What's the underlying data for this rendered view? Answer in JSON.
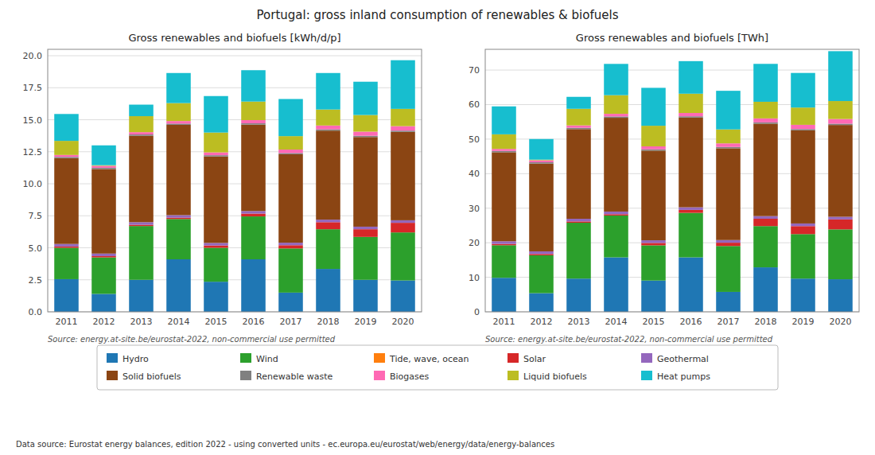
{
  "title": "Portugal: gross inland consumption of renewables & biofuels",
  "annotations": [
    "Data source: Eurostat energy balances, edition 2022 - using converted units - ec.europa.eu/eurostat/web/energy/data/energy-balances"
  ],
  "chart_data": [
    {
      "type": "bar",
      "stacked": true,
      "grid": true,
      "legend": "bottom",
      "title": "Gross renewables and biofuels [kWh/d/p]",
      "annotations": [
        "Source: energy.at-site.be/eurostat-2022, non-commercial use permitted"
      ],
      "categories": [
        "2011",
        "2012",
        "2013",
        "2014",
        "2015",
        "2016",
        "2017",
        "2018",
        "2019",
        "2020"
      ],
      "ylim": [
        0,
        20.5
      ],
      "yticks": [
        {
          "value": 0.0,
          "label": "0.0"
        },
        2.5,
        {
          "value": 5.0,
          "label": "5.0"
        },
        7.5,
        {
          "value": 10.0,
          "label": "10.0"
        },
        12.5,
        {
          "value": 15.0,
          "label": "15.0"
        },
        17.5,
        {
          "value": 20.0,
          "label": "20.0"
        }
      ],
      "series": [
        {
          "name": "Hydro",
          "color": "#1f77b4",
          "values": [
            2.55,
            1.4,
            2.5,
            4.1,
            2.35,
            4.1,
            1.5,
            3.35,
            2.5,
            2.45
          ]
        },
        {
          "name": "Wind",
          "color": "#2ca02c",
          "values": [
            2.45,
            2.85,
            4.2,
            3.15,
            2.65,
            3.35,
            3.45,
            3.1,
            3.35,
            3.75
          ]
        },
        {
          "name": "Tide, wave, ocean",
          "color": "#ff7f0e",
          "values": [
            0.0,
            0.0,
            0.0,
            0.0,
            0.0,
            0.0,
            0.0,
            0.0,
            0.0,
            0.0
          ]
        },
        {
          "name": "Solar",
          "color": "#d62728",
          "values": [
            0.1,
            0.1,
            0.1,
            0.1,
            0.18,
            0.22,
            0.25,
            0.55,
            0.6,
            0.75
          ]
        },
        {
          "name": "Geothermal",
          "color": "#9467bd",
          "values": [
            0.2,
            0.2,
            0.2,
            0.2,
            0.2,
            0.2,
            0.2,
            0.2,
            0.2,
            0.2
          ]
        },
        {
          "name": "Solid biofuels",
          "color": "#8B4513",
          "values": [
            6.7,
            6.6,
            6.75,
            7.05,
            6.75,
            6.75,
            6.9,
            6.95,
            7.0,
            6.9
          ]
        },
        {
          "name": "Renewable waste",
          "color": "#808080",
          "values": [
            0.1,
            0.1,
            0.1,
            0.1,
            0.1,
            0.1,
            0.1,
            0.1,
            0.1,
            0.1
          ]
        },
        {
          "name": "Biogases",
          "color": "#ff69b4",
          "values": [
            0.15,
            0.15,
            0.18,
            0.2,
            0.22,
            0.25,
            0.27,
            0.3,
            0.32,
            0.35
          ]
        },
        {
          "name": "Liquid biofuels",
          "color": "#bcbd22",
          "values": [
            1.1,
            0.05,
            1.25,
            1.4,
            1.55,
            1.45,
            1.05,
            1.25,
            1.3,
            1.35
          ]
        },
        {
          "name": "Heat pumps",
          "color": "#17becf",
          "values": [
            2.1,
            1.55,
            0.9,
            2.35,
            2.85,
            2.45,
            2.9,
            2.85,
            2.6,
            3.8
          ]
        }
      ]
    },
    {
      "type": "bar",
      "stacked": true,
      "grid": true,
      "title": "Gross renewables and biofuels [TWh]",
      "annotations": [
        "Source: energy.at-site.be/eurostat-2022, non-commercial use permitted"
      ],
      "categories": [
        "2011",
        "2012",
        "2013",
        "2014",
        "2015",
        "2016",
        "2017",
        "2018",
        "2019",
        "2020"
      ],
      "ylim": [
        0,
        76
      ],
      "yticks": [
        0,
        10,
        20,
        30,
        40,
        50,
        60,
        70
      ],
      "series": [
        {
          "name": "Hydro",
          "color": "#1f77b4",
          "values": [
            9.85,
            5.4,
            9.62,
            15.77,
            9.05,
            15.77,
            5.77,
            12.88,
            9.62,
            9.43
          ]
        },
        {
          "name": "Wind",
          "color": "#2ca02c",
          "values": [
            9.43,
            10.96,
            16.17,
            12.11,
            10.2,
            12.88,
            13.28,
            11.94,
            12.88,
            14.44
          ]
        },
        {
          "name": "Tide, wave, ocean",
          "color": "#ff7f0e",
          "values": [
            0.0,
            0.0,
            0.0,
            0.0,
            0.0,
            0.0,
            0.0,
            0.0,
            0.0,
            0.0
          ]
        },
        {
          "name": "Solar",
          "color": "#d62728",
          "values": [
            0.38,
            0.38,
            0.38,
            0.38,
            0.69,
            0.85,
            0.96,
            2.12,
            2.31,
            2.88
          ]
        },
        {
          "name": "Geothermal",
          "color": "#9467bd",
          "values": [
            0.77,
            0.77,
            0.77,
            0.77,
            0.77,
            0.77,
            0.77,
            0.77,
            0.77,
            0.77
          ]
        },
        {
          "name": "Solid biofuels",
          "color": "#8B4513",
          "values": [
            25.77,
            25.4,
            25.96,
            27.15,
            25.96,
            25.96,
            26.57,
            26.76,
            26.95,
            26.57
          ]
        },
        {
          "name": "Renewable waste",
          "color": "#808080",
          "values": [
            0.38,
            0.38,
            0.38,
            0.38,
            0.38,
            0.38,
            0.38,
            0.38,
            0.38,
            0.38
          ]
        },
        {
          "name": "Biogases",
          "color": "#ff69b4",
          "values": [
            0.58,
            0.58,
            0.69,
            0.77,
            0.85,
            0.96,
            1.04,
            1.15,
            1.23,
            1.35
          ]
        },
        {
          "name": "Liquid biofuels",
          "color": "#bcbd22",
          "values": [
            4.23,
            0.19,
            4.81,
            5.39,
            5.97,
            5.58,
            4.04,
            4.81,
            5.0,
            5.2
          ]
        },
        {
          "name": "Heat pumps",
          "color": "#17becf",
          "values": [
            8.09,
            5.97,
            3.46,
            9.06,
            10.98,
            9.43,
            11.18,
            10.98,
            10.02,
            14.44
          ]
        }
      ]
    }
  ]
}
